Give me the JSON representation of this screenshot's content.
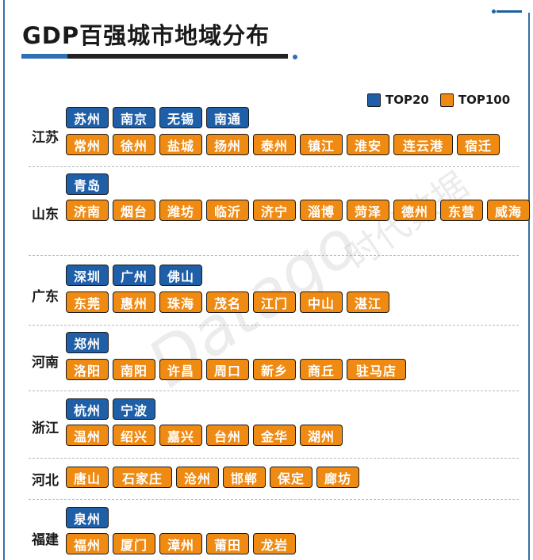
{
  "title": "GDP百强城市地域分布",
  "colors": {
    "top20": "#1f5fa8",
    "top100": "#ef8a12",
    "accent": "#2f6fb4"
  },
  "legend": [
    {
      "label": "TOP20",
      "key": "top20"
    },
    {
      "label": "TOP100",
      "key": "top100"
    }
  ],
  "chart_data": {
    "type": "table",
    "title": "GDP百强城市地域分布",
    "legend": [
      "TOP20",
      "TOP100"
    ],
    "rows": [
      {
        "province": "江苏",
        "top20": [
          "苏州",
          "南京",
          "无锡",
          "南通"
        ],
        "top100": [
          "常州",
          "徐州",
          "盐城",
          "扬州",
          "泰州",
          "镇江",
          "淮安",
          "连云港",
          "宿迁"
        ]
      },
      {
        "province": "山东",
        "top20": [
          "青岛"
        ],
        "top100": [
          "济南",
          "烟台",
          "潍坊",
          "临沂",
          "济宁",
          "淄博",
          "菏泽",
          "德州",
          "东营",
          "威海"
        ]
      },
      {
        "province": "广东",
        "top20": [
          "深圳",
          "广州",
          "佛山"
        ],
        "top100": [
          "东莞",
          "惠州",
          "珠海",
          "茂名",
          "江门",
          "中山",
          "湛江"
        ]
      },
      {
        "province": "河南",
        "top20": [
          "郑州"
        ],
        "top100": [
          "洛阳",
          "南阳",
          "许昌",
          "周口",
          "新乡",
          "商丘",
          "驻马店"
        ]
      },
      {
        "province": "浙江",
        "top20": [
          "杭州",
          "宁波"
        ],
        "top100": [
          "温州",
          "绍兴",
          "嘉兴",
          "台州",
          "金华",
          "湖州"
        ]
      },
      {
        "province": "河北",
        "top20": [],
        "top100": [
          "唐山",
          "石家庄",
          "沧州",
          "邯郸",
          "保定",
          "廊坊"
        ]
      },
      {
        "province": "福建",
        "top20": [
          "泉州"
        ],
        "top100": [
          "福州",
          "厦门",
          "漳州",
          "莆田",
          "龙岩"
        ]
      }
    ]
  }
}
